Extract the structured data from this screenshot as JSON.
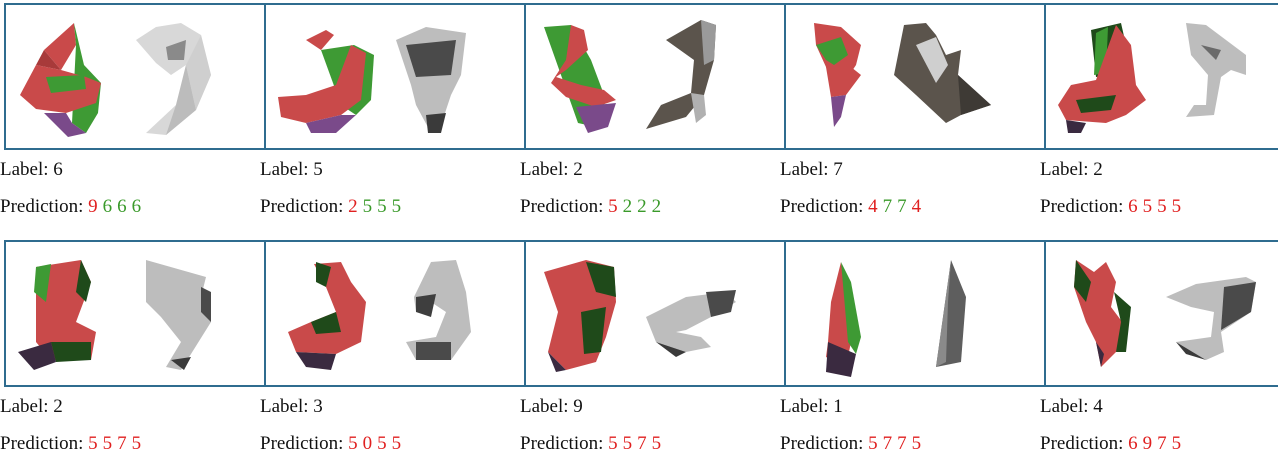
{
  "label_prefix": "Label: ",
  "prediction_prefix": "Prediction: ",
  "colors": {
    "correct": "#3a9a2a",
    "wrong": "#e02020",
    "frame": "#2f6c8f",
    "shape_red": "#c94a4a",
    "shape_green": "#3e9a34",
    "shape_purple": "#7a4a8a",
    "shape_gray": "#bdbdbd"
  },
  "samples": [
    {
      "label": "6",
      "predictions": [
        {
          "d": "9",
          "ok": false
        },
        {
          "d": "6",
          "ok": true
        },
        {
          "d": "6",
          "ok": true
        },
        {
          "d": "6",
          "ok": true
        }
      ]
    },
    {
      "label": "5",
      "predictions": [
        {
          "d": "2",
          "ok": false
        },
        {
          "d": "5",
          "ok": true
        },
        {
          "d": "5",
          "ok": true
        },
        {
          "d": "5",
          "ok": true
        }
      ]
    },
    {
      "label": "2",
      "predictions": [
        {
          "d": "5",
          "ok": false
        },
        {
          "d": "2",
          "ok": true
        },
        {
          "d": "2",
          "ok": true
        },
        {
          "d": "2",
          "ok": true
        }
      ]
    },
    {
      "label": "7",
      "predictions": [
        {
          "d": "4",
          "ok": false
        },
        {
          "d": "7",
          "ok": true
        },
        {
          "d": "7",
          "ok": true
        },
        {
          "d": "4",
          "ok": false
        }
      ]
    },
    {
      "label": "2",
      "predictions": [
        {
          "d": "6",
          "ok": false
        },
        {
          "d": "5",
          "ok": false
        },
        {
          "d": "5",
          "ok": false
        },
        {
          "d": "5",
          "ok": false
        }
      ]
    },
    {
      "label": "2",
      "predictions": [
        {
          "d": "5",
          "ok": false
        },
        {
          "d": "5",
          "ok": false
        },
        {
          "d": "7",
          "ok": false
        },
        {
          "d": "5",
          "ok": false
        }
      ]
    },
    {
      "label": "3",
      "predictions": [
        {
          "d": "5",
          "ok": false
        },
        {
          "d": "0",
          "ok": false
        },
        {
          "d": "5",
          "ok": false
        },
        {
          "d": "5",
          "ok": false
        }
      ]
    },
    {
      "label": "9",
      "predictions": [
        {
          "d": "5",
          "ok": false
        },
        {
          "d": "5",
          "ok": false
        },
        {
          "d": "7",
          "ok": false
        },
        {
          "d": "5",
          "ok": false
        }
      ]
    },
    {
      "label": "1",
      "predictions": [
        {
          "d": "5",
          "ok": false
        },
        {
          "d": "7",
          "ok": false
        },
        {
          "d": "7",
          "ok": false
        },
        {
          "d": "5",
          "ok": false
        }
      ]
    },
    {
      "label": "4",
      "predictions": [
        {
          "d": "6",
          "ok": false
        },
        {
          "d": "9",
          "ok": false
        },
        {
          "d": "7",
          "ok": false
        },
        {
          "d": "5",
          "ok": false
        }
      ]
    }
  ]
}
